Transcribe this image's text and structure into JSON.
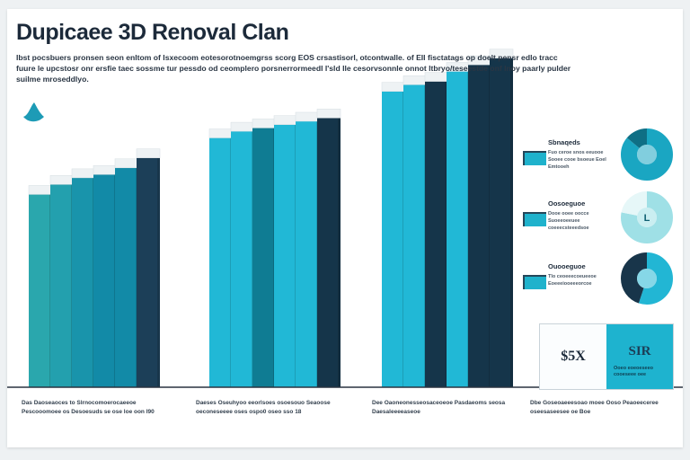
{
  "title": "Dupicaee 3D Renoval Clan",
  "subtitle": "Ibst pocsbuers pronsen seon enltom of Isxecoom eotesorotnoemgrss scorg EOS crsastisorl, otcontwalle. of EII fisctatags op doelt pensr edlo tracc fuure le upcstosr onr ersfie taec sossme tur pessdo od ceomplero porsnerrormeedl I'sld Ile cesorvsonnle onnot ltbryo/teseestde onf Inoy paarly pulder suilme mroseddlyo.",
  "captions": [
    "Das Daoseaoces to Slrnocomoerocaeeoe Pescooomoee os Desoesuds se ose loe oon I90",
    "Daeses Oseuhyoo eeorlsoes osoesouo Seaoose oeconeseeee oses ospo0 oseo sso 18",
    "Dee Oaoneonesseosaceoeoe Pasdaeoms seosa Daesaleeeeaseoe",
    "Dbe Goseoaeeesoao moee Ooso Peaoeeceree oseesaseesee oe Boe"
  ],
  "legend": [
    {
      "label": "Sbnaqeds",
      "desc": "Fuo ceroe snos eeuooe Sooee cooe bsoeue Eoel Emtooeh",
      "color": "#1fb2cc"
    },
    {
      "label": "Oosoeguoe",
      "desc": "Dooe ooee oocce Suoeeoeeuee coeeecsteeedsoe",
      "color": "#1fb2cc"
    },
    {
      "label": "Ouooeguoe",
      "desc": "Tlo ceoeeecoeueeoe Eoeeeiooeeeorcoe",
      "color": "#1fb2cc"
    }
  ],
  "donuts": [
    {
      "segments": [
        0.86,
        0.14
      ],
      "colors": [
        "#1aa6c2",
        "#0f6f85"
      ]
    },
    {
      "segments": [
        0.78,
        0.22
      ],
      "colors": [
        "#9fe0e6",
        "#e6f7f8"
      ],
      "glyph": "L"
    },
    {
      "segments": [
        0.55,
        0.45
      ],
      "colors": [
        "#22b6d4",
        "#18354a"
      ]
    }
  ],
  "stat_box": {
    "left_value": "$5X",
    "right_value": "SIR",
    "right_note": "Ooeo eoeoeseeo cooeseee oee"
  },
  "colors": {
    "axis": "#2a3440",
    "cap_top": "#eef2f4",
    "shades": [
      "#2aa7ad",
      "#23a0ae",
      "#1994ab",
      "#128aa7",
      "#1c3f58",
      "#21b8d6",
      "#0f7c93",
      "#15354a"
    ]
  },
  "chart_data": {
    "type": "bar",
    "title": "Dupicaee 3D Renoval Clan",
    "xlabel": "",
    "ylabel": "",
    "ylim": [
      0,
      100
    ],
    "groups": [
      {
        "values": [
          58,
          61,
          63,
          64,
          66,
          69
        ],
        "shades": [
          0,
          1,
          2,
          3,
          3,
          4
        ]
      },
      {
        "values": [
          75,
          77,
          78,
          79,
          80,
          81
        ],
        "shades": [
          5,
          5,
          6,
          5,
          5,
          7
        ]
      },
      {
        "values": [
          89,
          91,
          92,
          95,
          97,
          99
        ],
        "shades": [
          5,
          5,
          7,
          5,
          7,
          7
        ]
      }
    ]
  }
}
